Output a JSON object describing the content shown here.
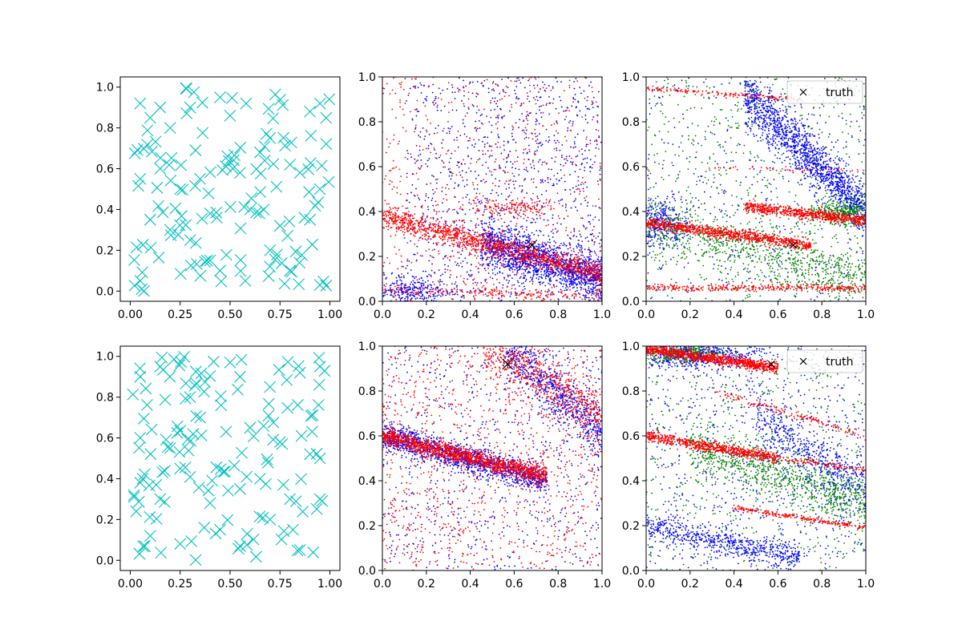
{
  "legend": {
    "truth_label": "truth"
  },
  "colors": {
    "cyan": "#00bfbf",
    "red": "#ff0000",
    "blue": "#0000ff",
    "green": "#008000",
    "truth": "#000000"
  },
  "chart_data": [
    {
      "name": "top-left",
      "type": "scatter",
      "xlim": [
        -0.05,
        1.05
      ],
      "ylim": [
        -0.05,
        1.05
      ],
      "xticks": [
        "0.00",
        "0.25",
        "0.50",
        "0.75",
        "1.00"
      ],
      "yticks": [
        "0.0",
        "0.2",
        "0.4",
        "0.6",
        "0.8",
        "1.0"
      ],
      "marker": "x",
      "color": "cyan",
      "n_points": 150,
      "seed": 11,
      "x": [
        0.05,
        0.1,
        0.15,
        0.2,
        0.3,
        0.45,
        0.5,
        0.7,
        0.9,
        0.95,
        0.05,
        0.15,
        0.25,
        0.35,
        0.55,
        0.65,
        0.8,
        0.85,
        0.95,
        0.1,
        0.2,
        0.4,
        0.6,
        0.75,
        0.9,
        0.05,
        0.3,
        0.45,
        0.7,
        0.8,
        0.95
      ],
      "y": [
        0.92,
        0.85,
        0.9,
        0.8,
        0.9,
        0.95,
        0.86,
        0.75,
        0.88,
        0.92,
        0.55,
        0.6,
        0.5,
        0.55,
        0.58,
        0.68,
        0.62,
        0.58,
        0.5,
        0.35,
        0.3,
        0.38,
        0.4,
        0.32,
        0.35,
        0.05,
        0.25,
        0.1,
        0.2,
        0.1,
        0.03
      ]
    },
    {
      "name": "top-middle",
      "type": "scatter",
      "xlim": [
        0,
        1
      ],
      "ylim": [
        0,
        1
      ],
      "xticks": [
        "0.0",
        "0.2",
        "0.4",
        "0.6",
        "0.8",
        "1.0"
      ],
      "yticks": [
        "0.0",
        "0.2",
        "0.4",
        "0.6",
        "0.8",
        "1.0"
      ],
      "series": [
        {
          "color": "blue",
          "components": [
            {
              "type": "line",
              "x0": 0.45,
              "x1": 1.0,
              "y0": 0.26,
              "y1": 0.1,
              "n": 1600,
              "spread": 0.05
            },
            {
              "type": "uniform",
              "n": 1100,
              "xmin": 0.1,
              "xmax": 1.0,
              "ymin": 0.0,
              "ymax": 1.0
            },
            {
              "type": "blob",
              "cx": 0.12,
              "cy": 0.05,
              "sx": 0.1,
              "sy": 0.04,
              "n": 300
            }
          ]
        },
        {
          "color": "red",
          "components": [
            {
              "type": "line",
              "x0": 0.0,
              "x1": 1.0,
              "y0": 0.38,
              "y1": 0.12,
              "n": 1300,
              "spread": 0.025
            },
            {
              "type": "line",
              "x0": 0.0,
              "x1": 1.0,
              "y0": 0.05,
              "y1": 0.02,
              "n": 200,
              "spread": 0.015
            },
            {
              "type": "blob",
              "cx": 0.6,
              "cy": 0.42,
              "sx": 0.1,
              "sy": 0.02,
              "n": 140
            },
            {
              "type": "uniform",
              "n": 700,
              "xmin": 0.0,
              "xmax": 1.0,
              "ymin": 0.0,
              "ymax": 1.0
            }
          ]
        }
      ],
      "truth": [
        0.68,
        0.25
      ],
      "truth_size": "large"
    },
    {
      "name": "top-right",
      "type": "scatter",
      "xlim": [
        0,
        1
      ],
      "ylim": [
        0,
        1
      ],
      "xticks": [
        "0.0",
        "0.2",
        "0.4",
        "0.6",
        "0.8",
        "1.0"
      ],
      "yticks": [
        "0.0",
        "0.2",
        "0.4",
        "0.6",
        "0.8",
        "1.0"
      ],
      "legend": "upper right",
      "series": [
        {
          "color": "blue",
          "components": [
            {
              "type": "line",
              "x0": 0.45,
              "x1": 1.0,
              "y0": 0.92,
              "y1": 0.4,
              "n": 1500,
              "spread": 0.06
            },
            {
              "type": "blob",
              "cx": 0.06,
              "cy": 0.35,
              "sx": 0.06,
              "sy": 0.05,
              "n": 350
            },
            {
              "type": "uniform",
              "n": 350,
              "xmin": 0.0,
              "xmax": 1.0,
              "ymin": 0.0,
              "ymax": 1.0
            }
          ]
        },
        {
          "color": "green",
          "components": [
            {
              "type": "line",
              "x0": 0.0,
              "x1": 1.0,
              "y0": 0.35,
              "y1": 0.1,
              "n": 800,
              "spread": 0.06
            },
            {
              "type": "blob",
              "cx": 0.9,
              "cy": 0.4,
              "sx": 0.08,
              "sy": 0.03,
              "n": 350
            },
            {
              "type": "uniform",
              "n": 700,
              "xmin": 0.0,
              "xmax": 1.0,
              "ymin": 0.0,
              "ymax": 1.0
            }
          ]
        },
        {
          "color": "red",
          "components": [
            {
              "type": "line",
              "x0": 0.0,
              "x1": 0.75,
              "y0": 0.35,
              "y1": 0.25,
              "n": 900,
              "spread": 0.012
            },
            {
              "type": "line",
              "x0": 0.45,
              "x1": 1.0,
              "y0": 0.42,
              "y1": 0.36,
              "n": 700,
              "spread": 0.012
            },
            {
              "type": "line",
              "x0": 0.0,
              "x1": 1.0,
              "y0": 0.06,
              "y1": 0.06,
              "n": 350,
              "spread": 0.008
            },
            {
              "type": "line",
              "x0": 0.0,
              "x1": 0.7,
              "y0": 0.95,
              "y1": 0.9,
              "n": 160,
              "spread": 0.006
            },
            {
              "type": "line",
              "x0": 0.2,
              "x1": 1.0,
              "y0": 0.6,
              "y1": 0.58,
              "n": 50,
              "spread": 0.006
            }
          ]
        }
      ],
      "truth": [
        0.67,
        0.25
      ],
      "truth_size": "small"
    },
    {
      "name": "bottom-left",
      "type": "scatter",
      "xlim": [
        -0.05,
        1.05
      ],
      "ylim": [
        -0.05,
        1.05
      ],
      "xticks": [
        "0.00",
        "0.25",
        "0.50",
        "0.75",
        "1.00"
      ],
      "yticks": [
        "0.0",
        "0.2",
        "0.4",
        "0.6",
        "0.8",
        "1.0"
      ],
      "marker": "x",
      "color": "cyan",
      "n_points": 150,
      "seed": 37,
      "x": [
        0.05,
        0.15,
        0.3,
        0.5,
        0.55,
        0.7,
        0.85,
        0.95,
        0.05,
        0.2,
        0.35,
        0.6,
        0.75,
        0.9,
        0.95,
        0.05,
        0.15,
        0.25,
        0.4,
        0.55,
        0.65,
        0.8,
        0.95,
        0.1,
        0.25,
        0.45,
        0.55,
        0.7,
        0.85
      ],
      "y": [
        0.9,
        0.95,
        0.8,
        0.97,
        0.9,
        0.85,
        0.92,
        0.95,
        0.6,
        0.55,
        0.7,
        0.65,
        0.58,
        0.52,
        0.5,
        0.38,
        0.3,
        0.45,
        0.28,
        0.35,
        0.4,
        0.3,
        0.3,
        0.12,
        0.08,
        0.15,
        0.07,
        0.2,
        0.05
      ]
    },
    {
      "name": "bottom-middle",
      "type": "scatter",
      "xlim": [
        0,
        1
      ],
      "ylim": [
        0,
        1
      ],
      "xticks": [
        "0.0",
        "0.2",
        "0.4",
        "0.6",
        "0.8",
        "1.0"
      ],
      "yticks": [
        "0.0",
        "0.2",
        "0.4",
        "0.6",
        "0.8",
        "1.0"
      ],
      "series": [
        {
          "color": "blue",
          "components": [
            {
              "type": "line",
              "x0": 0.0,
              "x1": 0.75,
              "y0": 0.6,
              "y1": 0.4,
              "n": 1400,
              "spread": 0.03
            },
            {
              "type": "line",
              "x0": 0.55,
              "x1": 1.0,
              "y0": 1.0,
              "y1": 0.6,
              "n": 700,
              "spread": 0.06
            },
            {
              "type": "uniform",
              "n": 700,
              "xmin": 0.0,
              "xmax": 1.0,
              "ymin": 0.0,
              "ymax": 1.0
            }
          ]
        },
        {
          "color": "red",
          "components": [
            {
              "type": "line",
              "x0": 0.0,
              "x1": 0.75,
              "y0": 0.6,
              "y1": 0.42,
              "n": 1400,
              "spread": 0.02
            },
            {
              "type": "line",
              "x0": 0.45,
              "x1": 1.0,
              "y0": 1.0,
              "y1": 0.7,
              "n": 600,
              "spread": 0.06
            },
            {
              "type": "uniform",
              "n": 1100,
              "xmin": 0.0,
              "xmax": 1.0,
              "ymin": 0.0,
              "ymax": 1.0
            }
          ]
        }
      ],
      "truth": [
        0.57,
        0.92
      ],
      "truth_size": "large"
    },
    {
      "name": "bottom-right",
      "type": "scatter",
      "xlim": [
        0,
        1
      ],
      "ylim": [
        0,
        1
      ],
      "xticks": [
        "0.0",
        "0.2",
        "0.4",
        "0.6",
        "0.8",
        "1.0"
      ],
      "yticks": [
        "0.0",
        "0.2",
        "0.4",
        "0.6",
        "0.8",
        "1.0"
      ],
      "legend": "upper right",
      "series": [
        {
          "color": "blue",
          "components": [
            {
              "type": "blob",
              "cx": 0.2,
              "cy": 0.96,
              "sx": 0.15,
              "sy": 0.03,
              "n": 600
            },
            {
              "type": "line",
              "x0": 0.0,
              "x1": 0.7,
              "y0": 0.2,
              "y1": 0.05,
              "n": 600,
              "spread": 0.03
            },
            {
              "type": "line",
              "x0": 0.5,
              "x1": 1.0,
              "y0": 0.7,
              "y1": 0.35,
              "n": 500,
              "spread": 0.06
            },
            {
              "type": "uniform",
              "n": 700,
              "xmin": 0.0,
              "xmax": 1.0,
              "ymin": 0.0,
              "ymax": 1.0
            }
          ]
        },
        {
          "color": "green",
          "components": [
            {
              "type": "line",
              "x0": 0.2,
              "x1": 1.0,
              "y0": 0.55,
              "y1": 0.3,
              "n": 900,
              "spread": 0.06
            },
            {
              "type": "blob",
              "cx": 0.15,
              "cy": 0.97,
              "sx": 0.1,
              "sy": 0.02,
              "n": 350
            },
            {
              "type": "uniform",
              "n": 600,
              "xmin": 0.0,
              "xmax": 1.0,
              "ymin": 0.0,
              "ymax": 1.0
            }
          ]
        },
        {
          "color": "red",
          "components": [
            {
              "type": "line",
              "x0": 0.0,
              "x1": 0.6,
              "y0": 0.99,
              "y1": 0.9,
              "n": 1000,
              "spread": 0.012
            },
            {
              "type": "line",
              "x0": 0.0,
              "x1": 0.6,
              "y0": 0.6,
              "y1": 0.5,
              "n": 700,
              "spread": 0.012
            },
            {
              "type": "line",
              "x0": 0.6,
              "x1": 1.0,
              "y0": 0.5,
              "y1": 0.45,
              "n": 100,
              "spread": 0.008
            },
            {
              "type": "line",
              "x0": 0.4,
              "x1": 1.0,
              "y0": 0.28,
              "y1": 0.19,
              "n": 220,
              "spread": 0.006
            },
            {
              "type": "line",
              "x0": 0.3,
              "x1": 1.0,
              "y0": 0.8,
              "y1": 0.6,
              "n": 150,
              "spread": 0.01
            }
          ]
        }
      ],
      "truth": [
        0.57,
        0.92
      ],
      "truth_size": "small"
    }
  ]
}
